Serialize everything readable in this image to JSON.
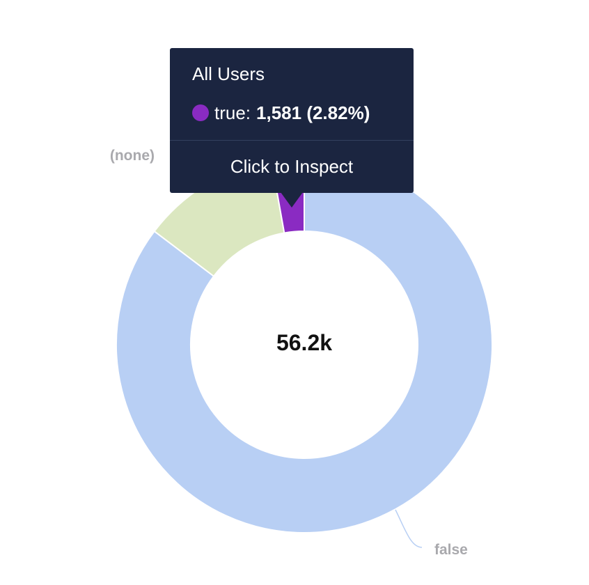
{
  "colors": {
    "false": "#b8cff4",
    "none": "#dbe7c0",
    "true": "#8a2bc2",
    "tooltip_bg": "#1b2540",
    "label_gray": "#a9a9ad"
  },
  "chart_data": {
    "type": "pie",
    "style": "donut",
    "total_label": "56.2k",
    "slices": [
      {
        "label": "false",
        "value": 47945
      },
      {
        "label": "(none)",
        "value": 6674
      },
      {
        "label": "true",
        "value": 1581,
        "percent": 2.82
      }
    ]
  },
  "tooltip": {
    "title": "All Users",
    "series_name": "true:",
    "series_value": "1,581 (2.82%)",
    "action": "Click to Inspect"
  }
}
